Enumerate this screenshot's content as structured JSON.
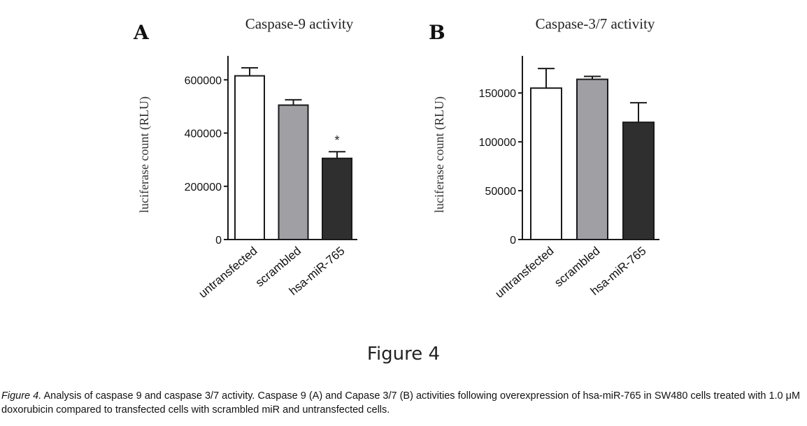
{
  "figure_label": "Figure 4",
  "caption": {
    "lead": "Figure 4.",
    "text": " Analysis of caspase 9 and caspase 3/7 activity. Caspase 9 (A) and Capase 3/7 (B) activities following overexpression of hsa-miR-765 in SW480 cells treated with 1.0 μM doxorubicin compared to transfected cells with scrambled miR and untransfected cells."
  },
  "chart_data": [
    {
      "panel": "A",
      "type": "bar",
      "title": "Caspase-9 activity",
      "ylabel": "luciferase count (RLU)",
      "categories": [
        "untransfected",
        "scrambled",
        "hsa-miR-765"
      ],
      "values": [
        615000,
        505000,
        305000
      ],
      "errors": [
        30000,
        20000,
        25000
      ],
      "annotations": [
        "",
        "",
        "*"
      ],
      "yticks": [
        0,
        200000,
        400000,
        600000
      ],
      "ytick_labels": [
        "0",
        "200000",
        "400000",
        "600000"
      ],
      "ylim": [
        0,
        690000
      ],
      "colors": [
        "#ffffff",
        "#a0a0a4",
        "#2f2f2f"
      ],
      "grid": false
    },
    {
      "panel": "B",
      "type": "bar",
      "title": "Caspase-3/7 activity",
      "ylabel": "luciferase count (RLU)",
      "categories": [
        "untransfected",
        "scrambled",
        "hsa-miR-765"
      ],
      "values": [
        155000,
        164000,
        120000
      ],
      "errors": [
        20000,
        3000,
        20000
      ],
      "annotations": [
        "",
        "",
        ""
      ],
      "yticks": [
        0,
        50000,
        100000,
        150000
      ],
      "ytick_labels": [
        "0",
        "50000",
        "100000",
        "150000"
      ],
      "ylim": [
        0,
        188000
      ],
      "colors": [
        "#ffffff",
        "#a0a0a4",
        "#2f2f2f"
      ],
      "grid": false
    }
  ]
}
